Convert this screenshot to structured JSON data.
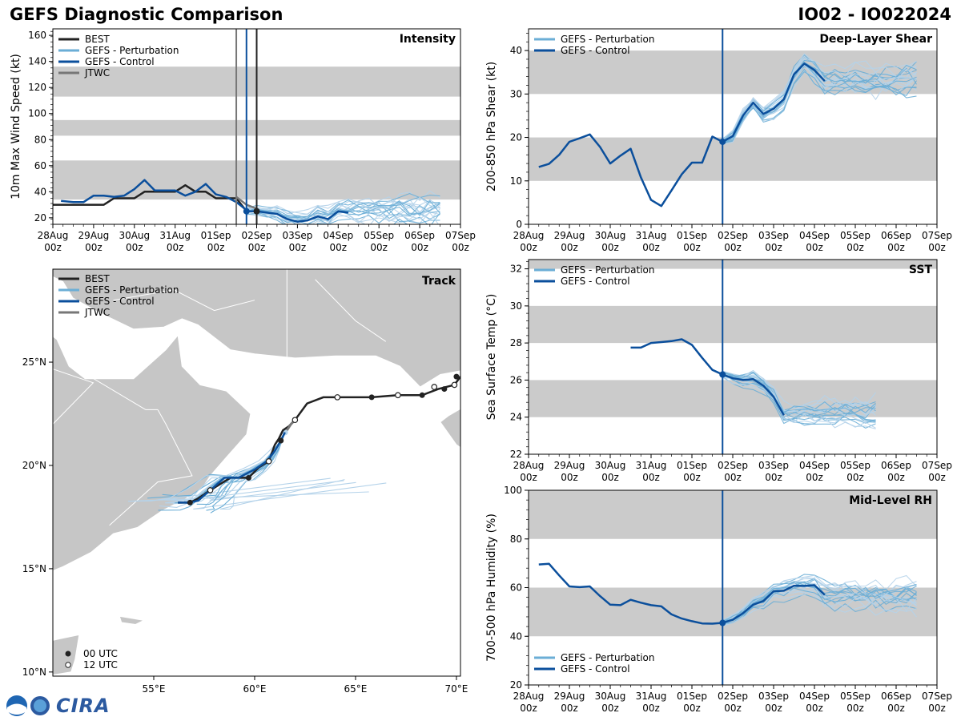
{
  "header": {
    "title": "GEFS Diagnostic Comparison",
    "storm_id": "IO02 - IO022024"
  },
  "logo": {
    "text": "CIRA",
    "seal_text": "NOAA"
  },
  "colors": {
    "best": "#222222",
    "perturbation": "#6baed6",
    "perturbation_light": "#b5d3ea",
    "control": "#0b4f9c",
    "jtwc": "#777777",
    "band": "#cbcbcb",
    "land": "#c6c6c6",
    "water": "#ffffff"
  },
  "time_axis": {
    "ticks": [
      "28Aug\n00z",
      "29Aug\n00z",
      "30Aug\n00z",
      "31Aug\n00z",
      "01Sep\n00z",
      "02Sep\n00z",
      "03Sep\n00z",
      "04Sep\n00z",
      "05Sep\n00z",
      "06Sep\n00z",
      "07Sep\n00z"
    ],
    "init_day": 4.75
  },
  "chart_data": [
    {
      "id": "intensity",
      "type": "line",
      "title": "Intensity",
      "ylabel": "10m Max Wind Speed (kt)",
      "xlabel": "",
      "ylim": [
        15,
        165
      ],
      "yticks": [
        20,
        40,
        60,
        80,
        100,
        120,
        140,
        160
      ],
      "bands": [
        [
          34,
          64
        ],
        [
          83,
          95
        ],
        [
          113,
          136
        ]
      ],
      "vlines": [
        {
          "x": 4.5,
          "series": "jtwc"
        },
        {
          "x": 4.75,
          "series": "control"
        },
        {
          "x": 5.0,
          "series": "best"
        }
      ],
      "legend": [
        "BEST",
        "GEFS - Perturbation",
        "GEFS - Control",
        "JTWC"
      ],
      "series": [
        {
          "name": "BEST",
          "key": "best",
          "x": [
            0,
            0.25,
            0.5,
            0.75,
            1,
            1.25,
            1.5,
            1.75,
            2,
            2.25,
            2.5,
            2.75,
            3,
            3.25,
            3.5,
            3.75,
            4,
            4.25,
            4.5,
            4.75,
            5
          ],
          "y": [
            30,
            30,
            30,
            30,
            30,
            30,
            35,
            35,
            35,
            40,
            40,
            40,
            40,
            45,
            40,
            40,
            35,
            35,
            35,
            25,
            25
          ]
        },
        {
          "name": "GEFS - Control",
          "key": "control",
          "x": [
            0.2,
            0.5,
            0.75,
            1,
            1.25,
            1.5,
            1.75,
            2,
            2.25,
            2.5,
            2.75,
            3,
            3.25,
            3.5,
            3.75,
            4,
            4.25,
            4.5,
            4.75
          ],
          "y": [
            33,
            32,
            32,
            37,
            37,
            36,
            37,
            42,
            49,
            41,
            41,
            41,
            37,
            40,
            46,
            38,
            36,
            32,
            26
          ]
        },
        {
          "name": "GEFS - Control (forecast)",
          "key": "control",
          "x": [
            4.75,
            5,
            5.25,
            5.5,
            5.75,
            6,
            6.25,
            6.5,
            6.75,
            7,
            7.25
          ],
          "y": [
            25,
            25,
            24,
            23,
            19,
            17,
            18,
            21,
            19,
            25,
            24
          ]
        },
        {
          "name": "JTWC",
          "key": "jtwc",
          "x": [
            4.5,
            4.75,
            5
          ],
          "y": [
            36,
            30,
            27
          ]
        }
      ]
    },
    {
      "id": "shear",
      "type": "line",
      "title": "Deep-Layer Shear",
      "ylabel": "200-850 hPa Shear (kt)",
      "xlabel": "",
      "ylim": [
        0,
        45
      ],
      "yticks": [
        0,
        10,
        20,
        30,
        40
      ],
      "bands": [
        [
          10,
          20
        ],
        [
          30,
          40
        ]
      ],
      "vlines": [
        {
          "x": 4.75,
          "series": "control"
        }
      ],
      "legend": [
        "GEFS - Perturbation",
        "GEFS - Control"
      ],
      "series": [
        {
          "name": "GEFS - Control",
          "key": "control",
          "x": [
            0.25,
            0.5,
            0.75,
            1,
            1.25,
            1.5,
            1.75,
            2,
            2.25,
            2.5,
            2.75,
            3,
            3.25,
            3.5,
            3.75,
            4,
            4.25,
            4.5,
            4.75,
            5,
            5.25,
            5.5,
            5.75,
            6,
            6.25,
            6.5,
            6.75,
            7,
            7.25
          ],
          "y": [
            13.2,
            13.9,
            16,
            19,
            19.8,
            20.7,
            17.8,
            14,
            15.8,
            17.4,
            10.8,
            5.6,
            4.2,
            7.8,
            11.5,
            14.2,
            14.2,
            20.2,
            19,
            20.3,
            25,
            28,
            25.4,
            26.6,
            28.8,
            34.5,
            37,
            35.5,
            33
          ]
        }
      ]
    },
    {
      "id": "sst",
      "type": "line",
      "title": "SST",
      "ylabel": "Sea Surface Temp (°C)",
      "xlabel": "",
      "ylim": [
        22,
        32.5
      ],
      "yticks": [
        22,
        24,
        26,
        28,
        30,
        32
      ],
      "bands": [
        [
          24,
          26
        ],
        [
          28,
          30
        ],
        [
          32,
          34
        ]
      ],
      "vlines": [
        {
          "x": 4.75,
          "series": "control"
        }
      ],
      "legend": [
        "GEFS - Perturbation",
        "GEFS - Control"
      ],
      "series": [
        {
          "name": "GEFS - Control",
          "key": "control",
          "x": [
            2.5,
            2.75,
            3,
            3.25,
            3.5,
            3.75,
            4,
            4.25,
            4.5,
            4.75,
            5,
            5.25,
            5.5,
            5.75,
            6,
            6.25
          ],
          "y": [
            27.75,
            27.75,
            28,
            28.05,
            28.1,
            28.2,
            27.9,
            27.2,
            26.55,
            26.3,
            26.1,
            26.0,
            26.05,
            25.7,
            25.1,
            24.1
          ]
        }
      ]
    },
    {
      "id": "rh",
      "type": "line",
      "title": "Mid-Level RH",
      "ylabel": "700-500 hPa Humidity (%)",
      "xlabel": "",
      "ylim": [
        20,
        100
      ],
      "yticks": [
        20,
        40,
        60,
        80,
        100
      ],
      "bands": [
        [
          40,
          60
        ],
        [
          80,
          100
        ]
      ],
      "vlines": [
        {
          "x": 4.75,
          "series": "control"
        }
      ],
      "legend": [
        "GEFS - Perturbation",
        "GEFS - Control"
      ],
      "series": [
        {
          "name": "GEFS - Control",
          "key": "control",
          "x": [
            0.25,
            0.5,
            0.75,
            1,
            1.25,
            1.5,
            1.75,
            2,
            2.25,
            2.5,
            2.75,
            3,
            3.25,
            3.5,
            3.75,
            4,
            4.25,
            4.5,
            4.75,
            5,
            5.25,
            5.5,
            5.75,
            6,
            6.25,
            6.5,
            6.75,
            7,
            7.25
          ],
          "y": [
            69.5,
            69.8,
            65,
            60.5,
            60.2,
            60.5,
            56.5,
            53,
            52.8,
            55,
            53.8,
            52.8,
            52.3,
            49,
            47.3,
            46.2,
            45.3,
            45.2,
            45.5,
            46.8,
            49.5,
            53,
            54.5,
            58.5,
            58.7,
            60.8,
            60.7,
            61,
            57
          ]
        }
      ]
    },
    {
      "id": "track",
      "type": "scatter",
      "title": "Track",
      "xlabel": "",
      "ylabel": "",
      "xlim": [
        50.0,
        70.2
      ],
      "ylim": [
        9.8,
        29.5
      ],
      "xticks": [
        {
          "v": 55,
          "label": "55°E"
        },
        {
          "v": 60,
          "label": "60°E"
        },
        {
          "v": 65,
          "label": "65°E"
        },
        {
          "v": 70,
          "label": "70°E"
        }
      ],
      "yticks": [
        {
          "v": 10,
          "label": "10°N"
        },
        {
          "v": 15,
          "label": "15°N"
        },
        {
          "v": 20,
          "label": "20°N"
        },
        {
          "v": 25,
          "label": "25°N"
        }
      ],
      "legend": [
        "BEST",
        "GEFS - Perturbation",
        "GEFS - Control",
        "JTWC"
      ],
      "marker_legend": [
        "00 UTC",
        "12 UTC"
      ],
      "best_track": {
        "lon": [
          70.2,
          69.9,
          69.1,
          68.3,
          67.1,
          65.8,
          64.1,
          63.4,
          62.6,
          62.0,
          61.7,
          61.4,
          61.2,
          61.0,
          60.7,
          60.2,
          59.7,
          58.8,
          57.8,
          57.2,
          56.8,
          56.2
        ],
        "lat": [
          24.3,
          23.9,
          23.7,
          23.4,
          23.4,
          23.3,
          23.3,
          23.3,
          23.0,
          22.2,
          21.9,
          21.7,
          21.3,
          21.0,
          20.2,
          19.9,
          19.4,
          19.4,
          18.8,
          18.4,
          18.2,
          18.2
        ],
        "dots_00": [
          [
            70.0,
            24.3
          ],
          [
            69.4,
            23.7
          ],
          [
            68.3,
            23.4
          ],
          [
            65.8,
            23.3
          ],
          [
            61.3,
            21.2
          ],
          [
            59.7,
            19.4
          ],
          [
            56.8,
            18.2
          ]
        ],
        "dots_12": [
          [
            69.9,
            23.9
          ],
          [
            68.9,
            23.8
          ],
          [
            67.1,
            23.4
          ],
          [
            64.1,
            23.3
          ],
          [
            62.0,
            22.2
          ],
          [
            60.7,
            20.2
          ],
          [
            57.8,
            18.8
          ]
        ]
      },
      "control_track": {
        "lon": [
          61.5,
          61.3,
          61.0,
          60.6,
          60.0,
          59.2,
          58.5,
          57.8,
          57.2,
          56.8,
          56.2
        ],
        "lat": [
          21.6,
          21.2,
          20.7,
          20.2,
          19.8,
          19.4,
          19.4,
          18.8,
          18.3,
          18.2,
          18.2
        ]
      },
      "jtwc_track": {
        "lon": [
          62.1,
          61.8,
          61.6
        ],
        "lat": [
          22.3,
          22.0,
          21.7
        ]
      }
    }
  ]
}
